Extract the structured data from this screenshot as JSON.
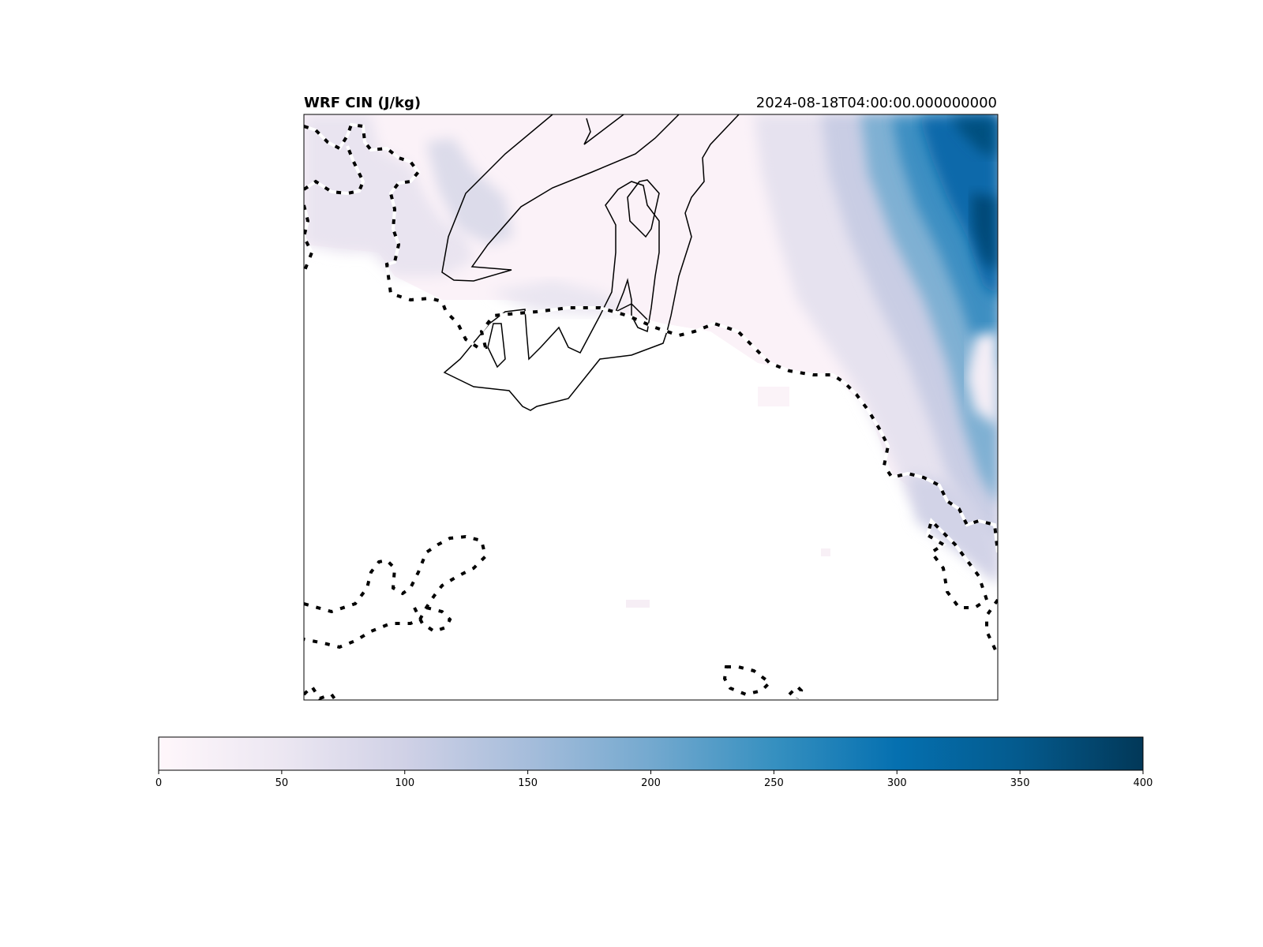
{
  "figure": {
    "title_left": "WRF CIN (J/kg)",
    "title_right": "2024-08-18T04:00:00.000000000"
  },
  "colorbar": {
    "orientation": "horizontal",
    "colormap": "PuBu",
    "colors": [
      "#fff7fb",
      "#ece7f2",
      "#d0d1e6",
      "#a6bddb",
      "#74a9cf",
      "#3690c0",
      "#0570b0",
      "#045a8d",
      "#023858"
    ],
    "min": 0,
    "max": 400,
    "ticks": [
      0,
      50,
      100,
      150,
      200,
      250,
      300,
      350,
      400
    ],
    "tick_labels": [
      "0",
      "50",
      "100",
      "150",
      "200",
      "250",
      "300",
      "350",
      "400"
    ]
  },
  "map": {
    "field": "CIN",
    "units": "J/kg",
    "pattern": "highest CIN (up to ~400 J/kg) in the northeast corner, decreasing toward the southwest; near zero over the southern ocean area",
    "features": [
      "coastline-dashed",
      "country-border-solid"
    ]
  }
}
